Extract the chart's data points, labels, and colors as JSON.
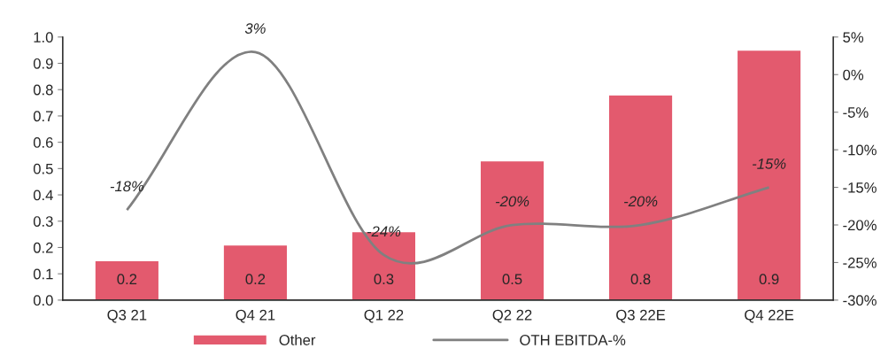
{
  "chart_data": {
    "type": "bar",
    "categories": [
      "Q3 21",
      "Q4 21",
      "Q1 22",
      "Q2 22",
      "Q3 22E",
      "Q4 22E"
    ],
    "series": [
      {
        "name": "Other",
        "color": "#e35a6e",
        "values": [
          0.15,
          0.21,
          0.26,
          0.53,
          0.78,
          0.95
        ],
        "value_labels": [
          "0.2",
          "0.2",
          "0.3",
          "0.5",
          "0.8",
          "0.9"
        ]
      },
      {
        "name": "OTH EBITDA-%",
        "type": "line",
        "axis": "y2",
        "color": "#808080",
        "values": [
          -18,
          3,
          -24,
          -20,
          -20,
          -15
        ],
        "value_labels": [
          "-18%",
          "3%",
          "-24%",
          "-20%",
          "-20%",
          "-15%"
        ]
      }
    ],
    "ylim": [
      0,
      1.0
    ],
    "yticks": [
      {
        "value": 0,
        "label": "0.0"
      },
      0.1,
      0.2,
      0.3,
      0.4,
      0.5,
      0.6,
      0.7,
      0.8,
      0.9,
      {
        "value": 1,
        "label": "1.0"
      }
    ],
    "y2lim": [
      -30,
      5
    ],
    "y2ticks": [
      {
        "value": -30,
        "label": "-30%"
      },
      {
        "value": -25,
        "label": "-25%"
      },
      {
        "value": -20,
        "label": "-20%"
      },
      {
        "value": -15,
        "label": "-15%"
      },
      {
        "value": -10,
        "label": "-10%"
      },
      {
        "value": -5,
        "label": "-5%"
      },
      {
        "value": 0,
        "label": "0%"
      },
      {
        "value": 5,
        "label": "5%"
      }
    ],
    "grid": false,
    "legend": "bottom",
    "marker": "none",
    "line_style": "solid"
  }
}
